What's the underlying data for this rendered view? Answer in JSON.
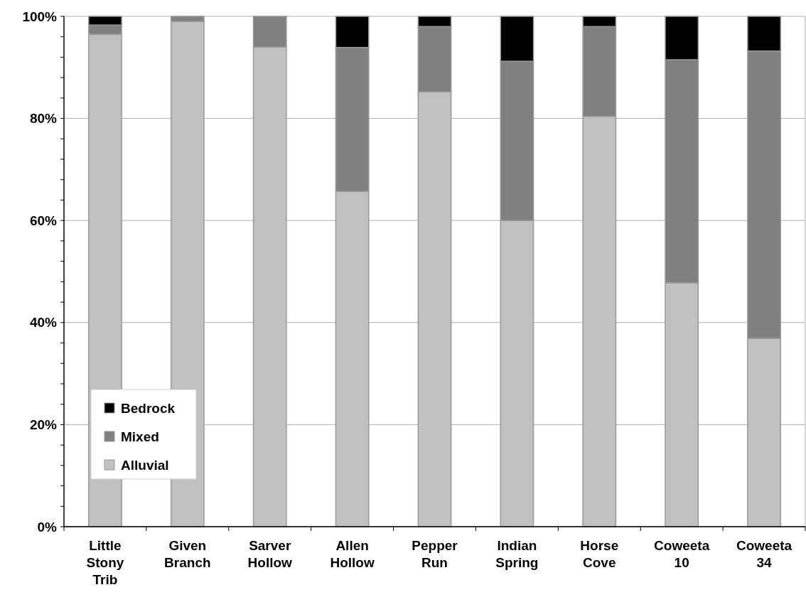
{
  "chart_data": {
    "type": "bar",
    "stacked": true,
    "categories": [
      "Little Stony Trib",
      "Given Branch",
      "Sarver Hollow",
      "Allen Hollow",
      "Pepper Run",
      "Indian Spring",
      "Horse Cove",
      "Coweeta 10",
      "Coweeta 34"
    ],
    "series": [
      {
        "name": "Alluvial",
        "color": "#c0c0c0",
        "values": [
          96.5,
          99.0,
          94.0,
          65.7,
          85.2,
          60.0,
          80.4,
          47.8,
          36.9
        ]
      },
      {
        "name": "Mixed",
        "color": "#808080",
        "values": [
          1.8,
          1.0,
          6.0,
          28.2,
          12.8,
          31.2,
          17.6,
          43.7,
          56.3
        ]
      },
      {
        "name": "Bedrock",
        "color": "#000000",
        "values": [
          1.7,
          0,
          0,
          6.1,
          2.0,
          8.8,
          2.0,
          8.5,
          6.8
        ]
      }
    ],
    "ylim": [
      0,
      100
    ],
    "yticks": [
      {
        "value": 0,
        "label": "0%"
      },
      {
        "value": 4,
        "label": null
      },
      {
        "value": 8,
        "label": null
      },
      {
        "value": 12,
        "label": null
      },
      {
        "value": 16,
        "label": null
      },
      {
        "value": 20,
        "label": "20%"
      },
      {
        "value": 24,
        "label": null
      },
      {
        "value": 28,
        "label": null
      },
      {
        "value": 32,
        "label": null
      },
      {
        "value": 36,
        "label": null
      },
      {
        "value": 40,
        "label": "40%"
      },
      {
        "value": 44,
        "label": null
      },
      {
        "value": 48,
        "label": null
      },
      {
        "value": 52,
        "label": null
      },
      {
        "value": 56,
        "label": null
      },
      {
        "value": 60,
        "label": "60%"
      },
      {
        "value": 64,
        "label": null
      },
      {
        "value": 68,
        "label": null
      },
      {
        "value": 72,
        "label": null
      },
      {
        "value": 76,
        "label": null
      },
      {
        "value": 80,
        "label": "80%"
      },
      {
        "value": 84,
        "label": null
      },
      {
        "value": 88,
        "label": null
      },
      {
        "value": 92,
        "label": null
      },
      {
        "value": 96,
        "label": null
      },
      {
        "value": 100,
        "label": "100%"
      }
    ],
    "grid": "y",
    "legend": "bottom left"
  }
}
